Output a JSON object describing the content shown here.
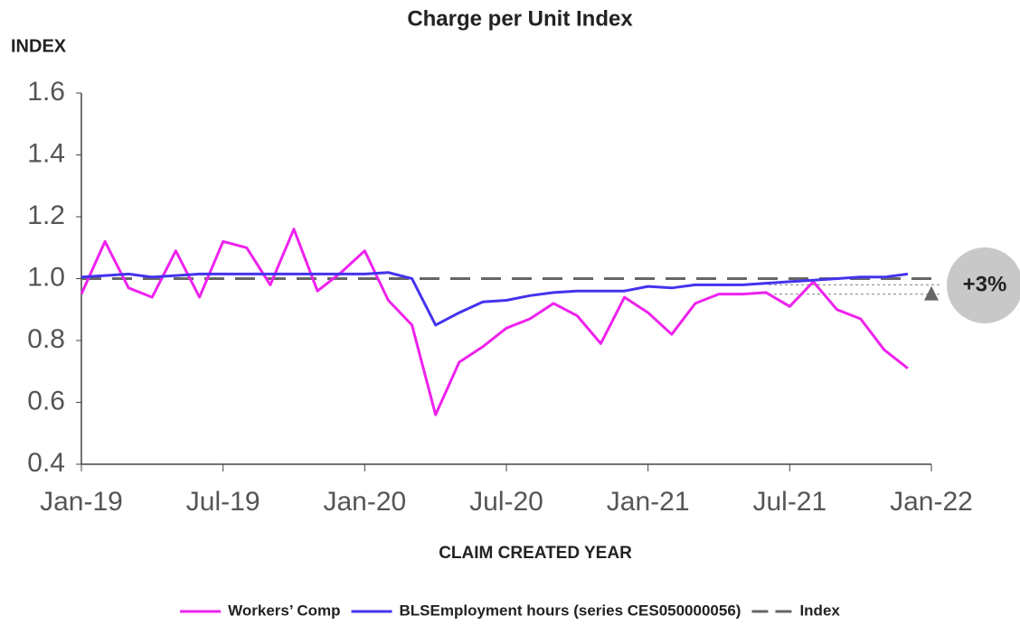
{
  "chart_data": {
    "type": "line",
    "title": "Charge per Unit Index",
    "y_label": "INDEX",
    "x_label": "CLAIM CREATED YEAR",
    "x": [
      "Jan-19",
      "Feb-19",
      "Mar-19",
      "Apr-19",
      "May-19",
      "Jun-19",
      "Jul-19",
      "Aug-19",
      "Sep-19",
      "Oct-19",
      "Nov-19",
      "Dec-19",
      "Jan-20",
      "Feb-20",
      "Mar-20",
      "Apr-20",
      "May-20",
      "Jun-20",
      "Jul-20",
      "Aug-20",
      "Sep-20",
      "Oct-20",
      "Nov-20",
      "Dec-20",
      "Jan-21",
      "Feb-21",
      "Mar-21",
      "Apr-21",
      "May-21",
      "Jun-21",
      "Jul-21",
      "Aug-21",
      "Sep-21",
      "Oct-21",
      "Nov-21",
      "Dec-21"
    ],
    "series": [
      {
        "name": "Workers’ Comp",
        "color": "#ee22ee",
        "values": [
          0.95,
          1.12,
          0.97,
          0.94,
          1.09,
          0.94,
          1.12,
          1.1,
          0.98,
          1.16,
          0.96,
          1.02,
          1.09,
          0.93,
          0.85,
          0.56,
          0.73,
          0.78,
          0.84,
          0.87,
          0.92,
          0.88,
          0.79,
          0.94,
          0.89,
          0.82,
          0.92,
          0.95,
          0.95,
          0.955,
          0.91,
          0.99,
          0.9,
          0.87,
          0.77,
          0.71
        ]
      },
      {
        "name": "BLSEmployment hours (series CES050000056)",
        "color": "#4433ee",
        "values": [
          1.005,
          1.01,
          1.015,
          1.005,
          1.01,
          1.015,
          1.015,
          1.015,
          1.015,
          1.015,
          1.015,
          1.015,
          1.015,
          1.02,
          1.0,
          0.85,
          0.89,
          0.925,
          0.93,
          0.945,
          0.955,
          0.96,
          0.96,
          0.96,
          0.975,
          0.97,
          0.98,
          0.98,
          0.98,
          0.985,
          0.99,
          0.995,
          1.0,
          1.005,
          1.005,
          1.015
        ]
      }
    ],
    "reference_lines": [
      {
        "name": "Index",
        "value": 1,
        "color": "#666666"
      }
    ],
    "annotation": {
      "text": "+3%",
      "from": 0.98,
      "to": 0.95
    },
    "xlim": [
      "Jan-19",
      "Jan-22"
    ],
    "xticks": [
      "Jan-19",
      "Jul-19",
      "Jan-20",
      "Jul-20",
      "Jan-21",
      "Jul-21",
      "Jan-22"
    ],
    "ylim": [
      0.4,
      1.6
    ],
    "yticks": [
      0.4,
      0.6,
      0.8,
      {
        "value": 1,
        "label": "1.0"
      },
      1.2,
      1.4,
      1.6
    ],
    "grid": false,
    "legend": "bottom"
  }
}
